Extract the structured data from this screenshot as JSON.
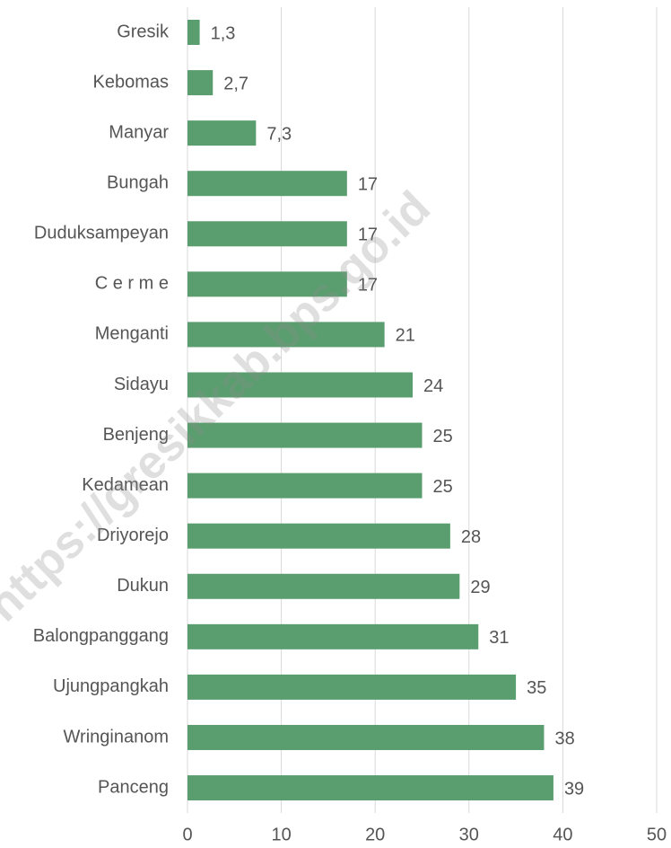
{
  "chart_data": {
    "type": "barh",
    "categories": [
      "Gresik",
      "Kebomas",
      "Manyar",
      "Bungah",
      "Duduksampeyan",
      "C e r m e",
      "Menganti",
      "Sidayu",
      "Benjeng",
      "Kedamean",
      "Driyorejo",
      "Dukun",
      "Balongpanggang",
      "Ujungpangkah",
      "Wringinanom",
      "Panceng"
    ],
    "values": [
      1.3,
      2.7,
      7.3,
      17,
      17,
      17,
      21,
      24,
      25,
      25,
      28,
      29,
      31,
      35,
      38,
      39
    ],
    "value_labels": [
      "1,3",
      "2,7",
      "7,3",
      "17",
      "17",
      "17",
      "21",
      "24",
      "25",
      "25",
      "28",
      "29",
      "31",
      "35",
      "38",
      "39"
    ],
    "color": "#5a9e6f",
    "xlim": [
      0,
      50
    ],
    "xticks": [
      0,
      10,
      20,
      30,
      40,
      50
    ],
    "grid": true,
    "watermark": "https://gresikkab.bps.go.id"
  }
}
